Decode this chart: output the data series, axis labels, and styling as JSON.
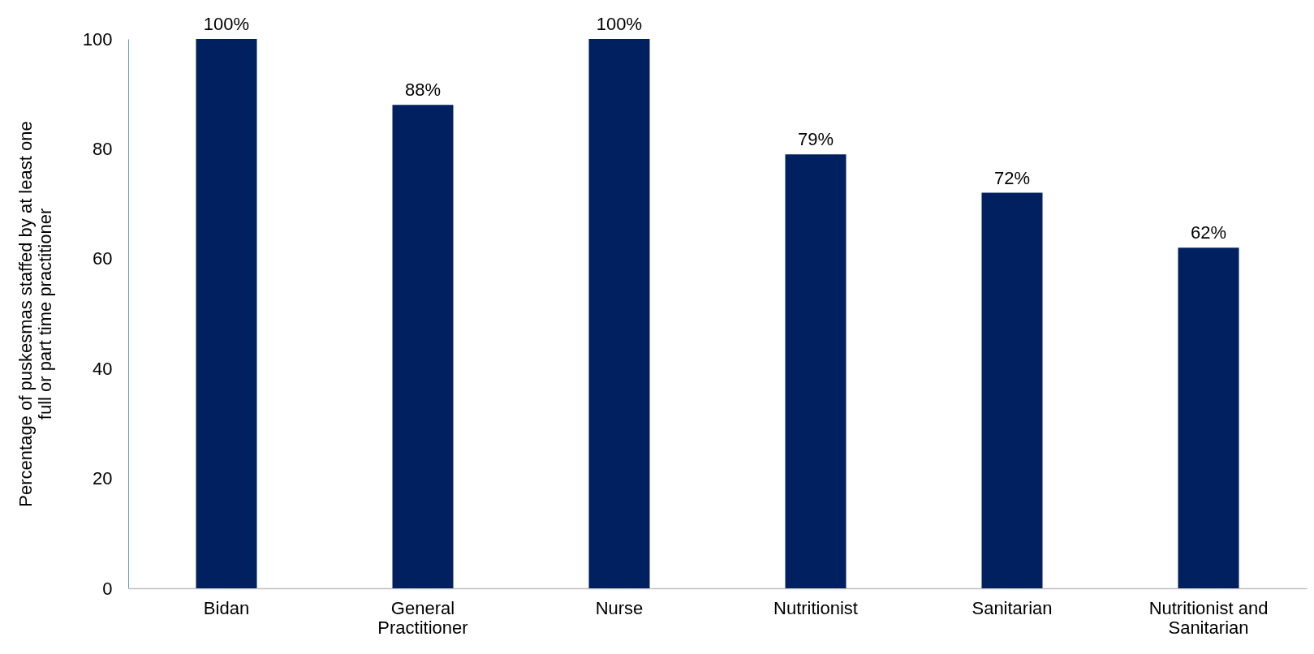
{
  "chart_data": {
    "type": "bar",
    "ylabel": "Percentage of puskesmas staffed by at least one full or part time practitioner",
    "categories": [
      "Bidan",
      "General Practitioner",
      "Nurse",
      "Nutritionist",
      "Sanitarian",
      "Nutritionist and Sanitarian"
    ],
    "values": [
      100,
      88,
      100,
      79,
      72,
      62
    ],
    "value_labels": [
      "100%",
      "88%",
      "100%",
      "79%",
      "72%",
      "62%"
    ],
    "color": "#002060",
    "ylim": [
      0,
      100
    ],
    "yticks": [
      0,
      20,
      40,
      60,
      80,
      100
    ],
    "grid": false
  }
}
